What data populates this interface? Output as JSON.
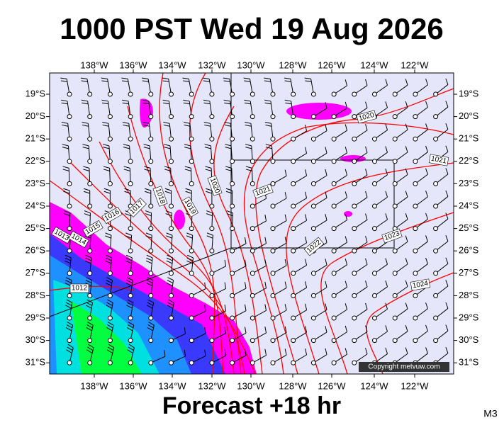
{
  "map": {
    "title": "1000 PST Wed 19 Aug 2026",
    "subtitle": "Forecast +18 hr",
    "corner_label": "M3",
    "copyright": "Copyright metvuw.com",
    "longitude_labels": [
      "138°W",
      "136°W",
      "134°W",
      "132°W",
      "130°W",
      "128°W",
      "126°W",
      "124°W",
      "122°W"
    ],
    "latitude_labels": [
      "19°S",
      "20°S",
      "21°S",
      "22°S",
      "23°S",
      "24°S",
      "25°S",
      "26°S",
      "27°S",
      "28°S",
      "29°S",
      "30°S",
      "31°S"
    ],
    "isobar_labels": [
      "1020",
      "1021",
      "1020",
      "1021",
      "1018",
      "1019",
      "1017",
      "1016",
      "1015",
      "1013",
      "1014",
      "1022",
      "1023",
      "1024",
      "1012"
    ]
  }
}
